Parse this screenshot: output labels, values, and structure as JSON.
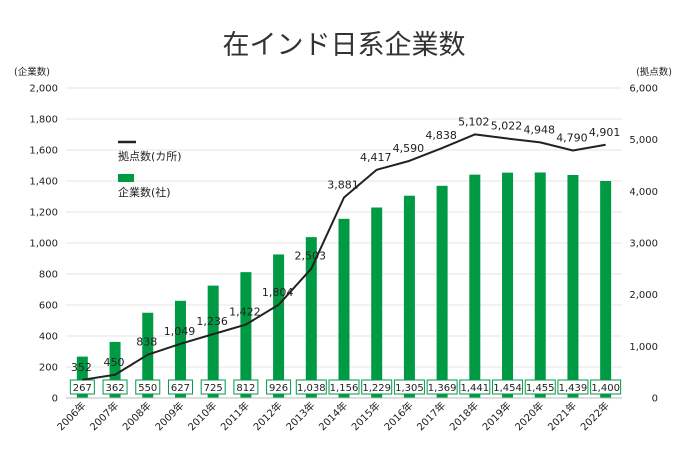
{
  "colors": {
    "bar": "#009a44",
    "line": "#222222",
    "grid": "#e6e6e6",
    "label_box_border": "#009a44",
    "label_box_bg": "#ffffff",
    "text": "#222222",
    "title": "#333333"
  },
  "chart_data": {
    "type": "bar",
    "title": "在インド日系企業数",
    "left_axis": {
      "unit_label": "(企業数)",
      "ylim": [
        0,
        2000
      ],
      "ticks": [
        "0",
        "200",
        "400",
        "600",
        "800",
        "1,000",
        "1,200",
        "1,400",
        "1,600",
        "1,800",
        "2,000"
      ]
    },
    "right_axis": {
      "unit_label": "(拠点数)",
      "ylim": [
        0,
        6000
      ],
      "ticks": [
        "0",
        "1,000",
        "2,000",
        "3,000",
        "4,000",
        "5,000",
        "6,000"
      ]
    },
    "grid": true,
    "legend_placement": "top-left",
    "categories": [
      "2006年",
      "2007年",
      "2008年",
      "2009年",
      "2010年",
      "2011年",
      "2012年",
      "2013年",
      "2014年",
      "2015年",
      "2016年",
      "2017年",
      "2018年",
      "2019年",
      "2020年",
      "2021年",
      "2022年"
    ],
    "series": [
      {
        "name": "企業数(社)",
        "type": "bar",
        "axis": "left",
        "values": [
          267,
          362,
          550,
          627,
          725,
          812,
          926,
          1038,
          1156,
          1229,
          1305,
          1369,
          1441,
          1454,
          1455,
          1439,
          1400
        ],
        "labels": [
          "267",
          "362",
          "550",
          "627",
          "725",
          "812",
          "926",
          "1,038",
          "1,156",
          "1,229",
          "1,305",
          "1,369",
          "1,441",
          "1,454",
          "1,455",
          "1,439",
          "1,400"
        ]
      },
      {
        "name": "拠点数(カ所)",
        "type": "line",
        "axis": "right",
        "values": [
          352,
          450,
          838,
          1049,
          1236,
          1422,
          1804,
          2503,
          3881,
          4417,
          4590,
          4838,
          5102,
          5022,
          4948,
          4790,
          4901
        ],
        "labels": [
          "352",
          "450",
          "838",
          "1,049",
          "1,236",
          "1,422",
          "1,804",
          "2,503",
          "3,881",
          "4,417",
          "4,590",
          "4,838",
          "5,102",
          "5,022",
          "4,948",
          "4,790",
          "4,901"
        ]
      }
    ]
  }
}
